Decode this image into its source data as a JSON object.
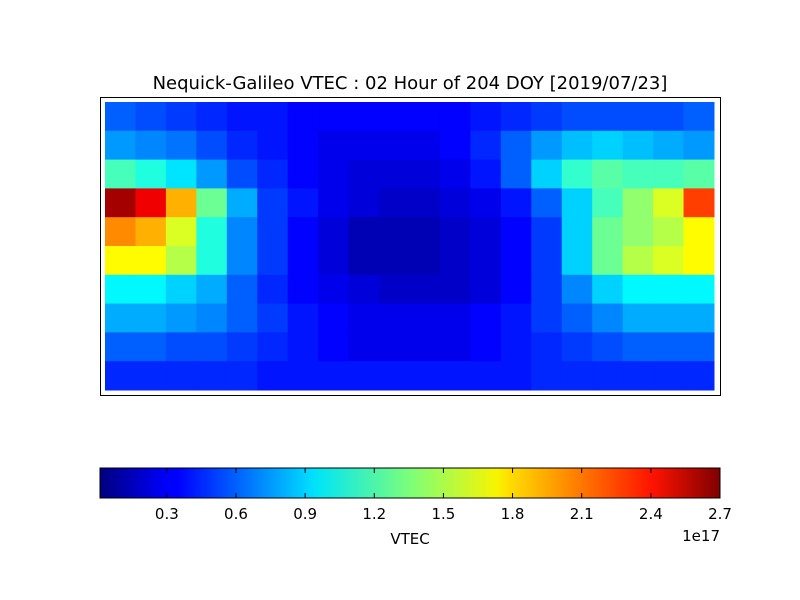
{
  "chart_data": {
    "type": "heatmap",
    "title": "Nequick-Galileo VTEC : 02 Hour of 204 DOY [2019/07/23]",
    "colorbar": {
      "label": "VTEC",
      "offset_label": "1e17",
      "lim": [
        0.01,
        2.7
      ],
      "ticks": [
        0.3,
        0.6,
        0.9,
        1.2,
        1.5,
        1.8,
        2.1,
        2.4,
        2.7
      ],
      "colormap": "jet"
    },
    "values": [
      [
        0.6,
        0.55,
        0.5,
        0.45,
        0.4,
        0.4,
        0.35,
        0.35,
        0.35,
        0.35,
        0.35,
        0.35,
        0.4,
        0.45,
        0.5,
        0.55,
        0.55,
        0.55,
        0.55,
        0.6
      ],
      [
        0.75,
        0.7,
        0.65,
        0.55,
        0.45,
        0.4,
        0.35,
        0.3,
        0.3,
        0.3,
        0.3,
        0.35,
        0.45,
        0.6,
        0.75,
        0.85,
        0.9,
        0.85,
        0.8,
        0.75
      ],
      [
        1.2,
        1.1,
        0.95,
        0.75,
        0.55,
        0.45,
        0.35,
        0.3,
        0.25,
        0.25,
        0.25,
        0.3,
        0.4,
        0.6,
        0.9,
        1.15,
        1.25,
        1.2,
        1.2,
        1.25
      ],
      [
        2.6,
        2.4,
        1.9,
        1.3,
        0.8,
        0.5,
        0.4,
        0.3,
        0.25,
        0.2,
        0.2,
        0.25,
        0.3,
        0.4,
        0.6,
        0.9,
        1.2,
        1.4,
        1.6,
        2.2
      ],
      [
        2.0,
        1.9,
        1.6,
        1.1,
        0.7,
        0.5,
        0.35,
        0.25,
        0.15,
        0.15,
        0.15,
        0.2,
        0.25,
        0.35,
        0.5,
        0.9,
        1.3,
        1.4,
        1.5,
        1.7
      ],
      [
        1.7,
        1.7,
        1.5,
        1.1,
        0.7,
        0.5,
        0.35,
        0.25,
        0.15,
        0.15,
        0.15,
        0.2,
        0.25,
        0.35,
        0.5,
        0.9,
        1.3,
        1.5,
        1.6,
        1.7
      ],
      [
        1.0,
        1.0,
        0.9,
        0.8,
        0.6,
        0.45,
        0.35,
        0.3,
        0.25,
        0.2,
        0.2,
        0.2,
        0.25,
        0.35,
        0.5,
        0.7,
        0.9,
        1.0,
        1.0,
        1.0
      ],
      [
        0.8,
        0.8,
        0.75,
        0.7,
        0.6,
        0.5,
        0.4,
        0.35,
        0.3,
        0.3,
        0.3,
        0.3,
        0.35,
        0.4,
        0.5,
        0.6,
        0.7,
        0.8,
        0.8,
        0.8
      ],
      [
        0.6,
        0.6,
        0.55,
        0.55,
        0.5,
        0.45,
        0.4,
        0.35,
        0.3,
        0.3,
        0.3,
        0.3,
        0.35,
        0.4,
        0.45,
        0.5,
        0.55,
        0.6,
        0.6,
        0.6
      ],
      [
        0.45,
        0.45,
        0.45,
        0.45,
        0.45,
        0.4,
        0.4,
        0.4,
        0.4,
        0.4,
        0.4,
        0.4,
        0.4,
        0.4,
        0.45,
        0.45,
        0.45,
        0.45,
        0.45,
        0.45
      ]
    ]
  }
}
